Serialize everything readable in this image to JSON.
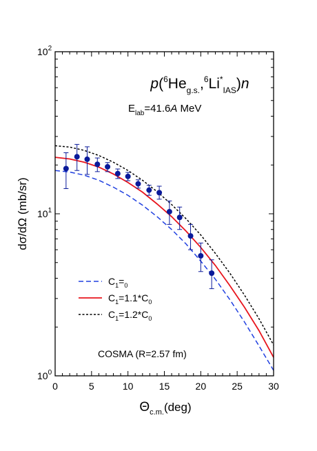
{
  "chart_data": {
    "type": "line",
    "title": {
      "p": "p",
      "open": "(",
      "nuc1_mass": "6",
      "nuc1": "He",
      "nuc1_sub": "g.s.",
      "comma": ",",
      "nuc2_mass": "6",
      "nuc2": "Li",
      "nuc2_sup": "*",
      "nuc2_sub": "IAS",
      "close": ")",
      "n": "n"
    },
    "energy_label": {
      "E": "E",
      "sub": "lab",
      "value": "=41.6",
      "A": "A",
      "unit": " MeV"
    },
    "xlabel": {
      "main": "Θ",
      "sub": "c.m.",
      "unit": "(deg)"
    },
    "ylabel": "dσ/dΩ (mb/sr)",
    "xlim": [
      0,
      30
    ],
    "ylim": [
      1,
      100
    ],
    "y_scale": "log",
    "x_ticks": [
      "0",
      "5",
      "10",
      "15",
      "20",
      "25",
      "30"
    ],
    "y_ticks": [
      {
        "base": "10",
        "exp": "0",
        "value": 1
      },
      {
        "base": "10",
        "exp": "1",
        "value": 10
      },
      {
        "base": "10",
        "exp": "2",
        "value": 100
      }
    ],
    "model_annotation": "COSMA (R=2.57 fm)",
    "legend_position": "lower-left",
    "series": [
      {
        "legend": {
          "C": "C",
          "sub1": "1",
          "eq": "=",
          "factor": "",
          "sub2": "0"
        },
        "color": "#1f3fe0",
        "style": "dashed",
        "x": [
          0,
          2,
          4,
          6,
          8,
          10,
          12,
          14,
          16,
          18,
          20,
          22,
          24,
          26,
          28,
          30
        ],
        "y": [
          18.5,
          18.1,
          17.3,
          16.1,
          14.6,
          13.0,
          11.3,
          9.6,
          8.0,
          6.5,
          5.1,
          3.95,
          2.95,
          2.15,
          1.53,
          1.08
        ]
      },
      {
        "legend": {
          "C": "C",
          "sub1": "1",
          "eq": "=1.1*",
          "factor": "C",
          "sub2": "0"
        },
        "color": "#e8141c",
        "style": "solid",
        "x": [
          0,
          2,
          4,
          6,
          8,
          10,
          12,
          14,
          16,
          18,
          20,
          22,
          24,
          26,
          28,
          30
        ],
        "y": [
          22.3,
          21.8,
          20.8,
          19.4,
          17.6,
          15.6,
          13.6,
          11.5,
          9.6,
          7.8,
          6.2,
          4.8,
          3.6,
          2.65,
          1.9,
          1.3
        ]
      },
      {
        "legend": {
          "C": "C",
          "sub1": "1",
          "eq": "=1.2*",
          "factor": "C",
          "sub2": "0"
        },
        "color": "#000000",
        "style": "dotted",
        "x": [
          0,
          2,
          4,
          6,
          8,
          10,
          12,
          14,
          16,
          18,
          20,
          22,
          24,
          26,
          28,
          30
        ],
        "y": [
          26.3,
          25.8,
          24.6,
          22.9,
          20.8,
          18.5,
          16.1,
          13.7,
          11.4,
          9.3,
          7.4,
          5.7,
          4.3,
          3.15,
          2.25,
          1.55
        ]
      }
    ],
    "points": {
      "color": "#0a1a9a",
      "x": [
        1.5,
        3.0,
        4.4,
        5.8,
        7.2,
        8.6,
        10.0,
        11.4,
        12.9,
        14.3,
        15.7,
        17.1,
        18.6,
        20.0,
        21.5
      ],
      "y": [
        19.0,
        22.5,
        21.7,
        20.2,
        19.5,
        17.7,
        17.0,
        15.3,
        14.0,
        13.5,
        10.3,
        9.5,
        7.3,
        5.5,
        4.3
      ],
      "err_low": [
        14.3,
        18.5,
        17.5,
        18.2,
        18.2,
        16.5,
        16.0,
        14.4,
        13.0,
        12.3,
        8.6,
        8.0,
        6.0,
        4.4,
        3.45
      ],
      "err_high": [
        23.8,
        26.8,
        25.9,
        22.1,
        20.7,
        18.9,
        18.0,
        16.2,
        15.0,
        14.8,
        12.0,
        11.0,
        8.6,
        6.6,
        5.2
      ]
    }
  }
}
